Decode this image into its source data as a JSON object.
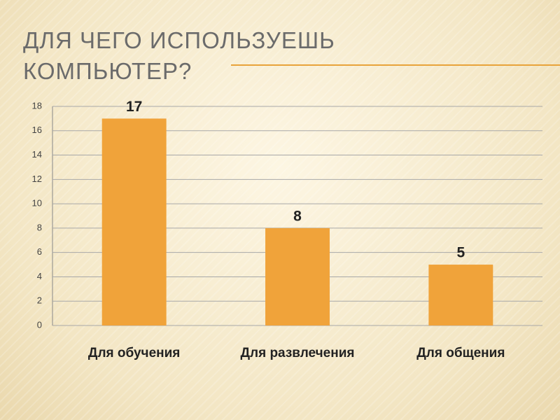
{
  "chart_data": {
    "type": "bar",
    "title": "ДЛЯ ЧЕГО ИСПОЛЬЗУЕШЬ КОМПЬЮТЕР?",
    "categories": [
      "Для обучения",
      "Для развлечения",
      "Для общения"
    ],
    "values": [
      17,
      8,
      5
    ],
    "color": "#f0a33a",
    "ylim": [
      0,
      18
    ],
    "yticks": [
      0,
      2,
      4,
      6,
      8,
      10,
      12,
      14,
      16,
      18
    ],
    "grid": true
  }
}
